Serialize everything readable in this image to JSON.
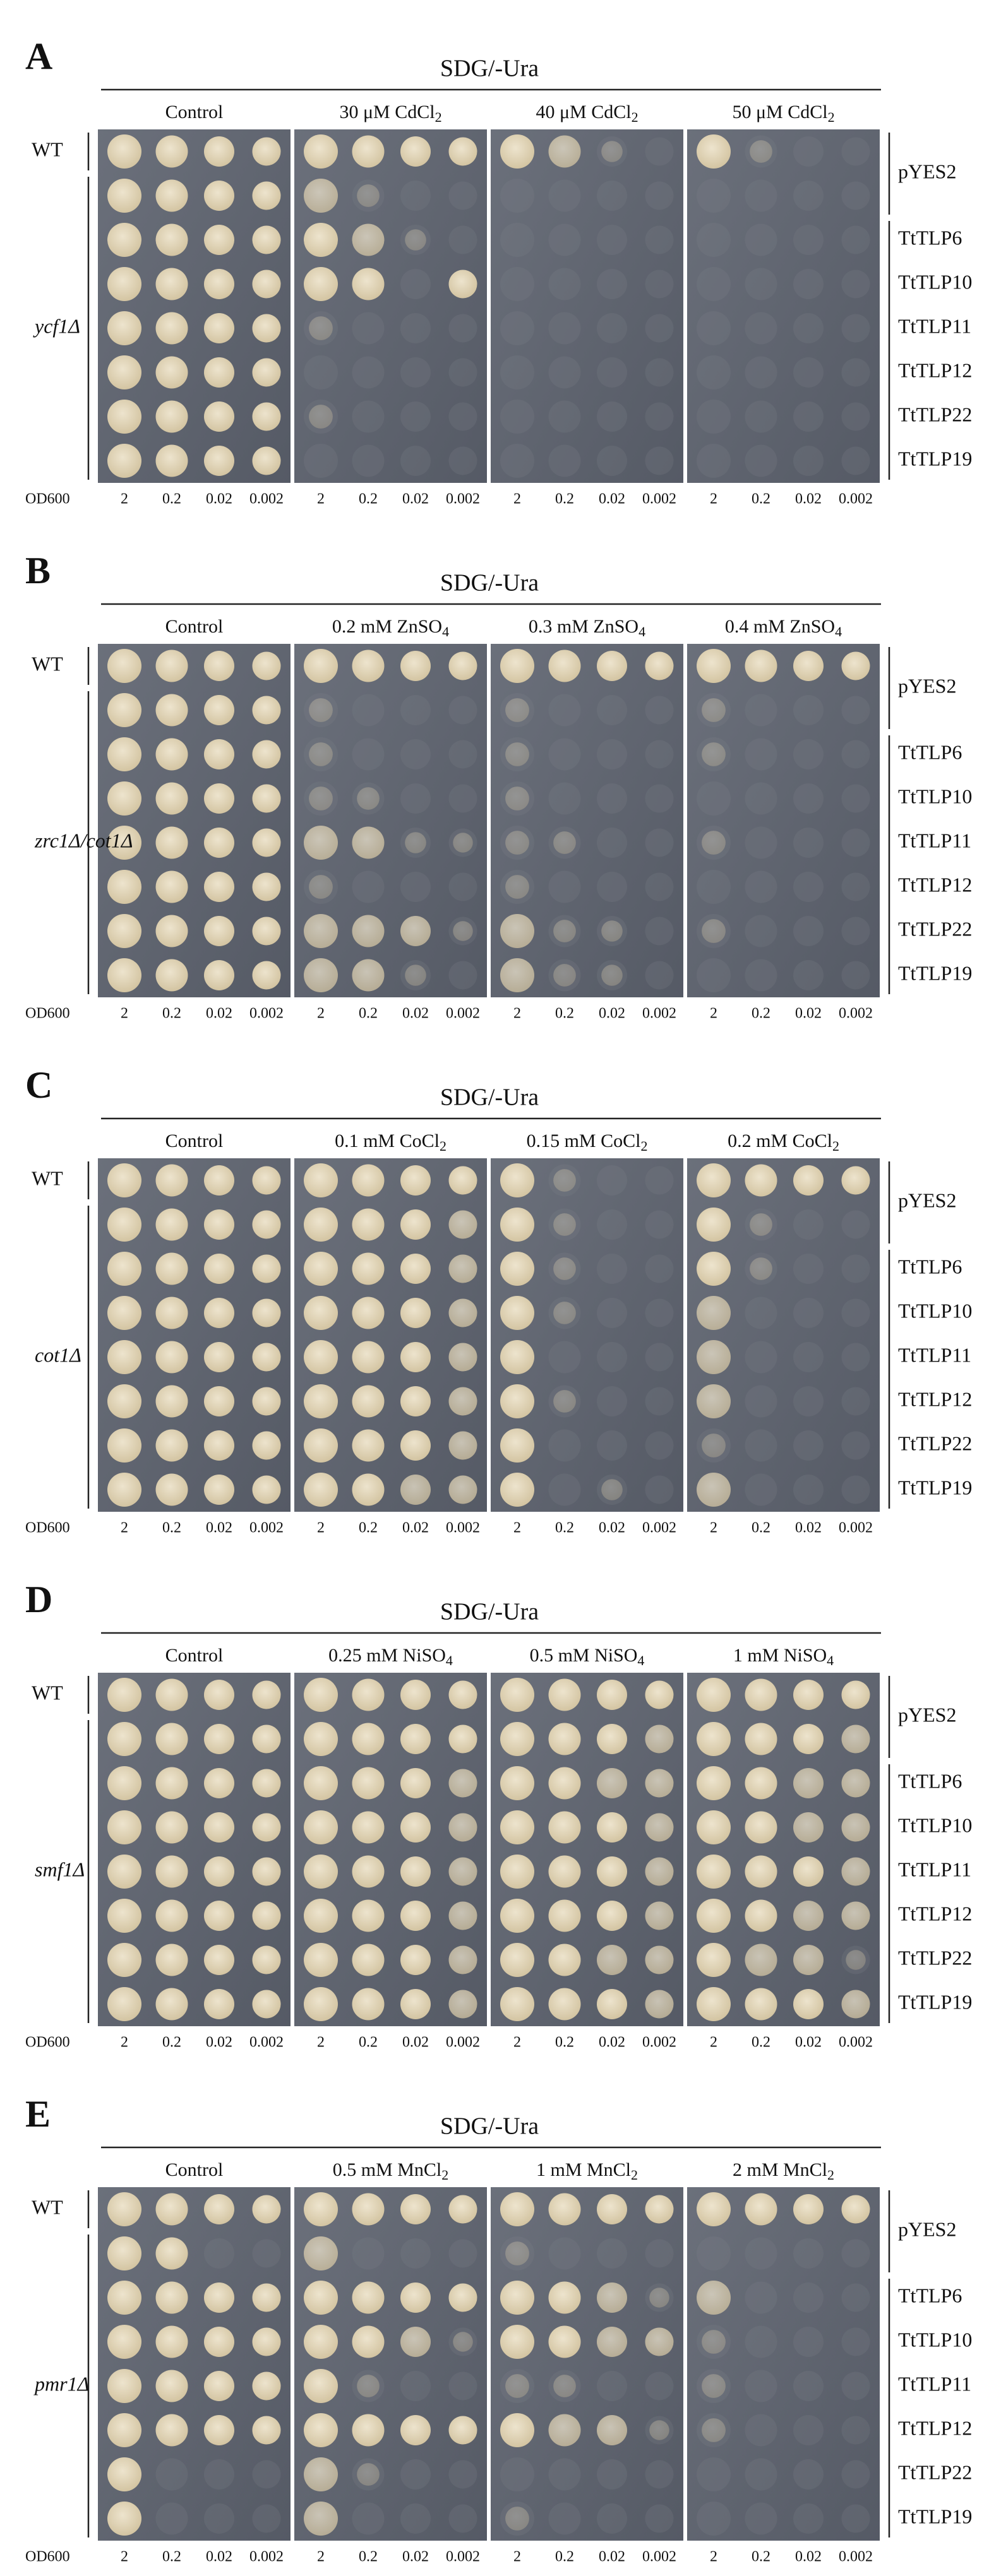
{
  "panels": [
    {
      "letter": "A",
      "title": "SDG/-Ura",
      "conditions": [
        {
          "text": "Control"
        },
        {
          "text": "30 μM CdCl",
          "sub": "2"
        },
        {
          "text": "40 μM CdCl",
          "sub": "2"
        },
        {
          "text": "50 μM CdCl",
          "sub": "2"
        }
      ],
      "wt": "WT",
      "strain": "ycf1Δ",
      "vector": "pYES2",
      "constructs": [
        "TtTLP6",
        "TtTLP10",
        "TtTLP11",
        "TtTLP12",
        "TtTLP22",
        "TtTLP19"
      ],
      "od_label": "OD600",
      "dilutions": [
        "2",
        "0.2",
        "0.02",
        "0.002"
      ]
    },
    {
      "letter": "B",
      "title": "SDG/-Ura",
      "conditions": [
        {
          "text": "Control"
        },
        {
          "text": "0.2 mM ZnSO",
          "sub": "4"
        },
        {
          "text": "0.3 mM ZnSO",
          "sub": "4"
        },
        {
          "text": "0.4 mM ZnSO",
          "sub": "4"
        }
      ],
      "wt": "WT",
      "strain": "zrc1Δ/cot1Δ",
      "vector": "pYES2",
      "constructs": [
        "TtTLP6",
        "TtTLP10",
        "TtTLP11",
        "TtTLP12",
        "TtTLP22",
        "TtTLP19"
      ],
      "od_label": "OD600",
      "dilutions": [
        "2",
        "0.2",
        "0.02",
        "0.002"
      ]
    },
    {
      "letter": "C",
      "title": "SDG/-Ura",
      "conditions": [
        {
          "text": "Control"
        },
        {
          "text": "0.1 mM CoCl",
          "sub": "2"
        },
        {
          "text": "0.15 mM CoCl",
          "sub": "2"
        },
        {
          "text": "0.2 mM CoCl",
          "sub": "2"
        }
      ],
      "wt": "WT",
      "strain": "cot1Δ",
      "vector": "pYES2",
      "constructs": [
        "TtTLP6",
        "TtTLP10",
        "TtTLP11",
        "TtTLP12",
        "TtTLP22",
        "TtTLP19"
      ],
      "od_label": "OD600",
      "dilutions": [
        "2",
        "0.2",
        "0.02",
        "0.002"
      ]
    },
    {
      "letter": "D",
      "title": "SDG/-Ura",
      "conditions": [
        {
          "text": "Control"
        },
        {
          "text": "0.25 mM NiSO",
          "sub": "4"
        },
        {
          "text": "0.5 mM NiSO",
          "sub": "4"
        },
        {
          "text": "1 mM NiSO",
          "sub": "4"
        }
      ],
      "wt": "WT",
      "strain": "smf1Δ",
      "vector": "pYES2",
      "constructs": [
        "TtTLP6",
        "TtTLP10",
        "TtTLP11",
        "TtTLP12",
        "TtTLP22",
        "TtTLP19"
      ],
      "od_label": "OD600",
      "dilutions": [
        "2",
        "0.2",
        "0.02",
        "0.002"
      ]
    },
    {
      "letter": "E",
      "title": "SDG/-Ura",
      "conditions": [
        {
          "text": "Control"
        },
        {
          "text": "0.5 mM MnCl",
          "sub": "2"
        },
        {
          "text": "1 mM MnCl",
          "sub": "2"
        },
        {
          "text": "2 mM MnCl",
          "sub": "2"
        }
      ],
      "wt": "WT",
      "strain": "pmr1Δ",
      "vector": "pYES2",
      "constructs": [
        "TtTLP6",
        "TtTLP10",
        "TtTLP11",
        "TtTLP12",
        "TtTLP22",
        "TtTLP19"
      ],
      "od_label": "OD600",
      "dilutions": [
        "2",
        "0.2",
        "0.02",
        "0.002"
      ]
    }
  ]
}
